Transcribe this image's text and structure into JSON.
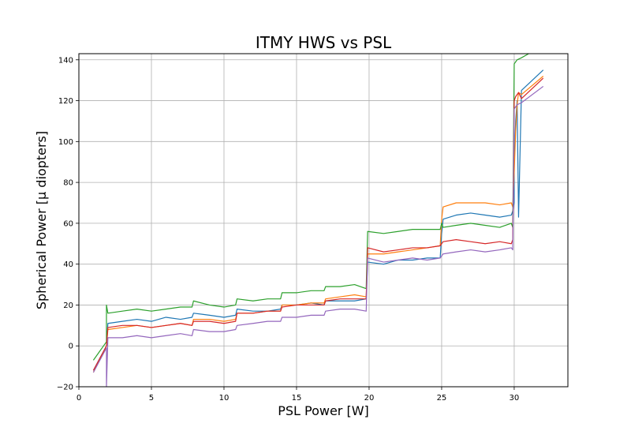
{
  "chart_data": {
    "type": "line",
    "title": "ITMY HWS vs PSL",
    "xlabel": "PSL Power [W]",
    "ylabel": "Spherical Power [μ diopters]",
    "xlim": [
      0,
      33.7
    ],
    "ylim": [
      -20,
      143
    ],
    "xticks": [
      0,
      5,
      10,
      15,
      20,
      25,
      30
    ],
    "yticks": [
      -20,
      0,
      20,
      40,
      60,
      80,
      100,
      120,
      140
    ],
    "grid": true,
    "legend": "none",
    "series": [
      {
        "color": "#1f77b4",
        "points": [
          [
            1,
            -12
          ],
          [
            1.9,
            0
          ],
          [
            2,
            11
          ],
          [
            3,
            12
          ],
          [
            4,
            13
          ],
          [
            5,
            12
          ],
          [
            6,
            14
          ],
          [
            7,
            13
          ],
          [
            7.8,
            14
          ],
          [
            7.9,
            16
          ],
          [
            9,
            15
          ],
          [
            10,
            14
          ],
          [
            10.8,
            15
          ],
          [
            10.9,
            18
          ],
          [
            12,
            17
          ],
          [
            13,
            17
          ],
          [
            13.9,
            18
          ],
          [
            14,
            20
          ],
          [
            15,
            20
          ],
          [
            16,
            21
          ],
          [
            16.9,
            20
          ],
          [
            17,
            22
          ],
          [
            18,
            22
          ],
          [
            19,
            22
          ],
          [
            19.8,
            23
          ],
          [
            19.9,
            41
          ],
          [
            21,
            40
          ],
          [
            22,
            42
          ],
          [
            23,
            42
          ],
          [
            24,
            43
          ],
          [
            24.9,
            43
          ],
          [
            25,
            55
          ],
          [
            25.1,
            62
          ],
          [
            26,
            64
          ],
          [
            27,
            65
          ],
          [
            28,
            64
          ],
          [
            29,
            63
          ],
          [
            29.8,
            64
          ],
          [
            29.9,
            66
          ],
          [
            30,
            70
          ],
          [
            30,
            90
          ],
          [
            30.1,
            110
          ],
          [
            30.2,
            120
          ],
          [
            30.3,
            63
          ],
          [
            30.5,
            125
          ],
          [
            32,
            135
          ]
        ]
      },
      {
        "color": "#ff7f0e",
        "points": [
          [
            1,
            -13
          ],
          [
            1.9,
            0
          ],
          [
            2,
            8
          ],
          [
            3,
            9
          ],
          [
            4,
            10
          ],
          [
            5,
            9
          ],
          [
            6,
            10
          ],
          [
            7,
            11
          ],
          [
            7.8,
            10
          ],
          [
            7.9,
            13
          ],
          [
            9,
            13
          ],
          [
            10,
            12
          ],
          [
            10.8,
            13
          ],
          [
            10.9,
            16
          ],
          [
            12,
            16
          ],
          [
            13,
            17
          ],
          [
            13.9,
            17
          ],
          [
            14,
            20
          ],
          [
            15,
            20
          ],
          [
            16,
            21
          ],
          [
            16.9,
            21
          ],
          [
            17,
            23
          ],
          [
            18,
            24
          ],
          [
            19,
            25
          ],
          [
            19.8,
            24
          ],
          [
            19.9,
            45
          ],
          [
            21,
            45
          ],
          [
            22,
            46
          ],
          [
            23,
            47
          ],
          [
            24,
            48
          ],
          [
            24.9,
            49
          ],
          [
            25,
            62
          ],
          [
            25.1,
            68
          ],
          [
            26,
            70
          ],
          [
            27,
            70
          ],
          [
            28,
            70
          ],
          [
            29,
            69
          ],
          [
            29.8,
            70
          ],
          [
            29.9,
            68
          ],
          [
            30,
            85
          ],
          [
            30.1,
            105
          ],
          [
            30.2,
            118
          ],
          [
            30.3,
            124
          ],
          [
            30.5,
            123
          ],
          [
            32,
            132
          ]
        ]
      },
      {
        "color": "#2ca02c",
        "points": [
          [
            1,
            -7
          ],
          [
            1.9,
            2
          ],
          [
            1.9,
            20
          ],
          [
            2,
            16
          ],
          [
            3,
            17
          ],
          [
            4,
            18
          ],
          [
            5,
            17
          ],
          [
            6,
            18
          ],
          [
            7,
            19
          ],
          [
            7.8,
            19
          ],
          [
            7.9,
            22
          ],
          [
            9,
            20
          ],
          [
            10,
            19
          ],
          [
            10.8,
            20
          ],
          [
            10.9,
            23
          ],
          [
            12,
            22
          ],
          [
            13,
            23
          ],
          [
            13.9,
            23
          ],
          [
            14,
            26
          ],
          [
            15,
            26
          ],
          [
            16,
            27
          ],
          [
            16.9,
            27
          ],
          [
            17,
            29
          ],
          [
            18,
            29
          ],
          [
            19,
            30
          ],
          [
            19.8,
            28
          ],
          [
            19.9,
            56
          ],
          [
            21,
            55
          ],
          [
            22,
            56
          ],
          [
            23,
            57
          ],
          [
            24,
            57
          ],
          [
            24.9,
            57
          ],
          [
            25,
            60
          ],
          [
            25.1,
            58
          ],
          [
            26,
            59
          ],
          [
            27,
            60
          ],
          [
            28,
            59
          ],
          [
            29,
            58
          ],
          [
            29.8,
            60
          ],
          [
            29.9,
            58
          ],
          [
            30,
            138
          ],
          [
            30.2,
            140
          ],
          [
            30.5,
            141
          ],
          [
            31,
            143
          ]
        ]
      },
      {
        "color": "#d62728",
        "points": [
          [
            1,
            -12
          ],
          [
            1.9,
            0
          ],
          [
            2,
            9
          ],
          [
            3,
            10
          ],
          [
            4,
            10
          ],
          [
            5,
            9
          ],
          [
            6,
            10
          ],
          [
            7,
            11
          ],
          [
            7.8,
            10
          ],
          [
            7.9,
            12
          ],
          [
            9,
            12
          ],
          [
            10,
            11
          ],
          [
            10.8,
            12
          ],
          [
            10.9,
            16
          ],
          [
            12,
            16
          ],
          [
            13,
            17
          ],
          [
            13.9,
            17
          ],
          [
            14,
            19
          ],
          [
            15,
            20
          ],
          [
            16,
            20
          ],
          [
            16.9,
            20
          ],
          [
            17,
            22
          ],
          [
            18,
            23
          ],
          [
            19,
            23
          ],
          [
            19.8,
            23
          ],
          [
            19.9,
            48
          ],
          [
            21,
            46
          ],
          [
            22,
            47
          ],
          [
            23,
            48
          ],
          [
            24,
            48
          ],
          [
            24.9,
            49
          ],
          [
            25,
            50
          ],
          [
            25.1,
            51
          ],
          [
            26,
            52
          ],
          [
            27,
            51
          ],
          [
            28,
            50
          ],
          [
            29,
            51
          ],
          [
            29.8,
            50
          ],
          [
            29.9,
            52
          ],
          [
            30,
            120
          ],
          [
            30.1,
            122
          ],
          [
            30.3,
            124
          ],
          [
            30.5,
            121
          ],
          [
            32,
            131
          ]
        ]
      },
      {
        "color": "#9467bd",
        "points": [
          [
            1,
            -13
          ],
          [
            1.9,
            -1
          ],
          [
            1.9,
            -20
          ],
          [
            2,
            4
          ],
          [
            3,
            4
          ],
          [
            4,
            5
          ],
          [
            5,
            4
          ],
          [
            6,
            5
          ],
          [
            7,
            6
          ],
          [
            7.8,
            5
          ],
          [
            7.9,
            8
          ],
          [
            9,
            7
          ],
          [
            10,
            7
          ],
          [
            10.8,
            8
          ],
          [
            10.9,
            10
          ],
          [
            12,
            11
          ],
          [
            13,
            12
          ],
          [
            13.9,
            12
          ],
          [
            14,
            14
          ],
          [
            15,
            14
          ],
          [
            16,
            15
          ],
          [
            16.9,
            15
          ],
          [
            17,
            17
          ],
          [
            18,
            18
          ],
          [
            19,
            18
          ],
          [
            19.8,
            17
          ],
          [
            19.9,
            43
          ],
          [
            21,
            41
          ],
          [
            22,
            42
          ],
          [
            23,
            43
          ],
          [
            24,
            42
          ],
          [
            24.9,
            43
          ],
          [
            25,
            44
          ],
          [
            25.1,
            45
          ],
          [
            26,
            46
          ],
          [
            27,
            47
          ],
          [
            28,
            46
          ],
          [
            29,
            47
          ],
          [
            29.8,
            48
          ],
          [
            29.9,
            47
          ],
          [
            30,
            116
          ],
          [
            30.2,
            118
          ],
          [
            30.5,
            119
          ],
          [
            32,
            127
          ]
        ]
      }
    ]
  }
}
